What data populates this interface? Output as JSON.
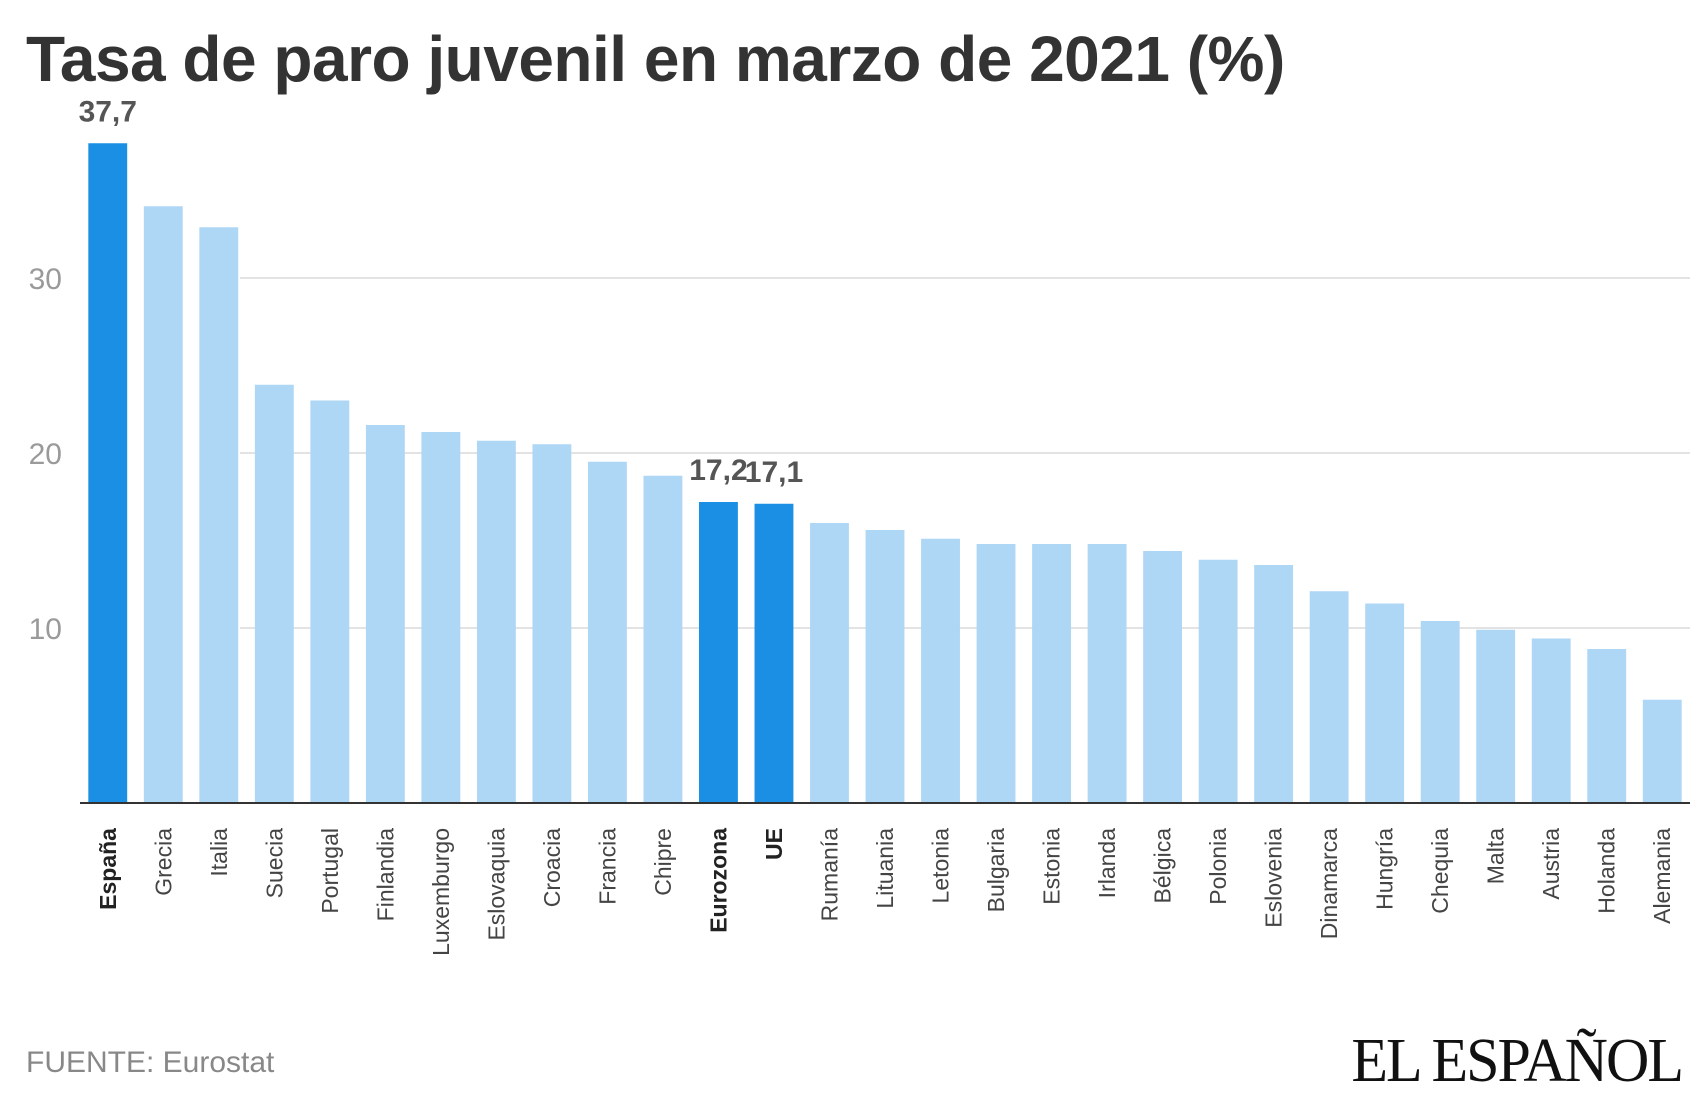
{
  "chart_data": {
    "type": "bar",
    "title": "Tasa de paro juvenil en marzo de 2021 (%)",
    "xlabel": "",
    "ylabel": "",
    "ylim": [
      0,
      40
    ],
    "yticks": [
      10,
      20,
      30
    ],
    "grid": true,
    "categories": [
      "España",
      "Grecia",
      "Italia",
      "Suecia",
      "Portugal",
      "Finlandia",
      "Luxemburgo",
      "Eslovaquia",
      "Croacia",
      "Francia",
      "Chipre",
      "Eurozona",
      "UE",
      "Rumanía",
      "Lituania",
      "Letonia",
      "Bulgaria",
      "Estonia",
      "Irlanda",
      "Bélgica",
      "Polonia",
      "Eslovenia",
      "Dinamarca",
      "Hungría",
      "Chequia",
      "Malta",
      "Austria",
      "Holanda",
      "Alemania"
    ],
    "values": [
      37.7,
      34.1,
      32.9,
      23.9,
      23.0,
      21.6,
      21.2,
      20.7,
      20.5,
      19.5,
      18.7,
      17.2,
      17.1,
      16.0,
      15.6,
      15.1,
      14.8,
      14.8,
      14.8,
      14.4,
      13.9,
      13.6,
      12.1,
      11.4,
      10.4,
      9.9,
      9.4,
      8.8,
      5.9
    ],
    "highlighted": [
      "España",
      "Eurozona",
      "UE"
    ],
    "data_labels": [
      {
        "category": "España",
        "text": "37,7"
      },
      {
        "category": "Eurozona",
        "text": "17,2"
      },
      {
        "category": "UE",
        "text": "17,1"
      }
    ],
    "colors": {
      "highlight": "#1a8fe3",
      "default": "#aed6f5",
      "grid": "#e3e3e3",
      "axis": "#333333"
    }
  },
  "footer": {
    "source": "FUENTE: Eurostat",
    "logo": "EL ESPAÑOL"
  }
}
